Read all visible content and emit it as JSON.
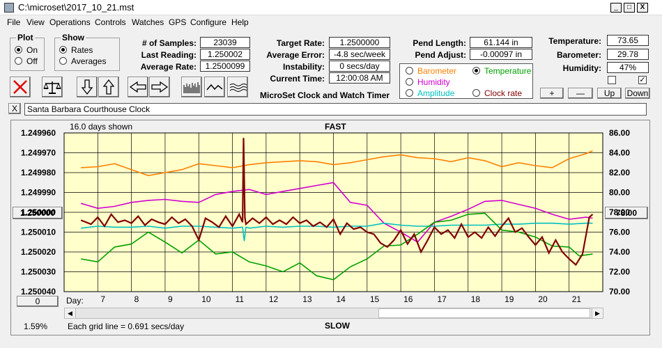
{
  "window": {
    "title": "C:\\microset\\2017_10_21.mst",
    "minimize": "_",
    "maximize": "□",
    "close": "X"
  },
  "menu": [
    "File",
    "View",
    "Operations",
    "Controls",
    "Watches",
    "GPS",
    "Configure",
    "Help"
  ],
  "plot_group": {
    "title": "Plot",
    "options": [
      "On",
      "Off"
    ],
    "selected": "On"
  },
  "show_group": {
    "title": "Show",
    "options": [
      "Rates",
      "Averages"
    ],
    "selected": "Rates"
  },
  "stats": {
    "samples_label": "# of Samples:",
    "samples": "23039",
    "last_reading_label": "Last Reading:",
    "last_reading": "1.250002",
    "avg_rate_label": "Average Rate:",
    "avg_rate": "1.2500099"
  },
  "rates": {
    "target_label": "Target Rate:",
    "target": "1.2500000",
    "avg_error_label": "Average Error:",
    "avg_error": "-4.8 sec/week",
    "instability_label": "Instability:",
    "instability": "0 secs/day",
    "current_time_label": "Current Time:",
    "current_time": "12:00:08 AM"
  },
  "pendulum": {
    "length_label": "Pend Length:",
    "length": "61.144 in",
    "adjust_label": "Pend Adjust:",
    "adjust": "-0.00097 in"
  },
  "env": {
    "temp_label": "Temperature:",
    "temp": "73.65",
    "baro_label": "Barometer:",
    "baro": "29.78",
    "humid_label": "Humidity:",
    "humid": "47%"
  },
  "overlay": {
    "options": [
      {
        "label": "Barometer",
        "color": "#ff8000",
        "selected": false
      },
      {
        "label": "Temperature",
        "color": "#00a000",
        "selected": true
      },
      {
        "label": "Humidity",
        "color": "#d000d0",
        "selected": false
      },
      {
        "label": "Clock rate",
        "color": "#800000",
        "selected": false
      },
      {
        "label": "Amplitude",
        "color": "#00c0c0",
        "selected": false
      }
    ]
  },
  "scale_buttons": {
    "plus": "+",
    "minus": "—",
    "up": "Up",
    "down": "Down"
  },
  "product_title": "MicroSet Clock and Watch Timer",
  "clock_name": "Santa Barbara Courthouse Clock",
  "clock_name_close": "X",
  "chart_data": {
    "type": "line",
    "top_label": "FAST",
    "bottom_label": "SLOW",
    "days_shown": "16.0 days shown",
    "grid_note": "Each grid line = 0.691 secs/day",
    "percent": "1.59%",
    "left_button": "1.250000",
    "right_button": "78.00",
    "left_bottom_button": "0",
    "day_label": "Day:",
    "x_ticks": [
      "7",
      "8",
      "9",
      "10",
      "11",
      "12",
      "13",
      "14",
      "15",
      "16",
      "17",
      "18",
      "19",
      "20",
      "21"
    ],
    "y_left_ticks": [
      "1.249960",
      "1.249970",
      "1.249980",
      "1.249990",
      "1.250000",
      "1.250010",
      "1.250020",
      "1.250030",
      "1.250040"
    ],
    "y_right_ticks": [
      "86.00",
      "84.00",
      "82.00",
      "80.00",
      "78.00",
      "76.00",
      "74.00",
      "72.00",
      "70.00"
    ],
    "series": [
      {
        "name": "Barometer",
        "color": "#ff8000",
        "x": [
          6.5,
          7,
          7.5,
          8,
          8.5,
          9,
          9.5,
          10,
          10.5,
          11,
          11.5,
          12,
          12.5,
          13,
          13.5,
          14,
          14.5,
          15,
          15.5,
          16,
          16.5,
          17,
          17.5,
          18,
          18.5,
          19,
          19.5,
          20,
          20.5,
          21,
          21.5,
          21.7
        ],
        "y": [
          82.5,
          82.6,
          82.9,
          82.3,
          81.7,
          82.0,
          82.3,
          82.9,
          82.7,
          82.5,
          82.8,
          83.0,
          83.1,
          83.2,
          83.1,
          82.8,
          83.0,
          83.3,
          83.6,
          83.8,
          83.5,
          83.4,
          83.1,
          83.5,
          83.2,
          82.6,
          83.0,
          82.7,
          82.5,
          83.4,
          83.9,
          84.2
        ]
      },
      {
        "name": "Humidity",
        "color": "#d000d0",
        "x": [
          6.5,
          7,
          7.5,
          8,
          8.5,
          9,
          9.5,
          10,
          10.5,
          11,
          11.5,
          12,
          12.5,
          13,
          13.5,
          14,
          14.5,
          15,
          15.5,
          16,
          16.5,
          17,
          17.5,
          18,
          18.5,
          19,
          19.5,
          20,
          20.5,
          21,
          21.5,
          21.7
        ],
        "y": [
          78.9,
          78.4,
          78.6,
          79.0,
          79.2,
          79.3,
          79.1,
          79.0,
          79.8,
          80.1,
          80.3,
          79.8,
          80.1,
          80.4,
          80.7,
          81.0,
          79.0,
          78.7,
          76.9,
          76.0,
          75.0,
          77.0,
          77.6,
          78.3,
          79.1,
          79.2,
          78.8,
          78.4,
          77.8,
          77.3,
          77.5,
          77.4
        ]
      },
      {
        "name": "Amplitude",
        "color": "#00c0c0",
        "x": [
          6.5,
          7,
          7.5,
          8,
          8.5,
          9,
          9.5,
          10,
          10.5,
          11,
          11.3,
          11.35,
          11.4,
          11.5,
          12,
          12.5,
          13,
          13.5,
          14,
          14.5,
          15,
          15.5,
          16,
          16.5,
          17,
          17.5,
          18,
          18.5,
          19,
          19.5,
          20,
          20.5,
          21,
          21.5,
          21.7
        ],
        "y": [
          76.4,
          76.6,
          76.5,
          76.5,
          76.6,
          76.4,
          76.6,
          76.6,
          76.5,
          76.4,
          76.5,
          75.1,
          76.5,
          76.4,
          76.6,
          76.5,
          76.6,
          76.6,
          76.5,
          76.6,
          76.6,
          76.9,
          76.7,
          76.6,
          76.6,
          76.7,
          76.7,
          76.7,
          76.8,
          76.8,
          76.9,
          76.9,
          76.8,
          76.9,
          76.9
        ]
      },
      {
        "name": "Temperature",
        "color": "#00a000",
        "x": [
          6.5,
          7,
          7.5,
          8,
          8.5,
          9,
          9.5,
          10,
          10.5,
          11,
          11.5,
          12,
          12.5,
          13,
          13.5,
          14,
          14.5,
          15,
          15.5,
          16,
          16.5,
          17,
          17.5,
          18,
          18.5,
          19,
          19.5,
          20,
          20.5,
          21,
          21.3,
          21.7
        ],
        "y": [
          73.3,
          73.0,
          74.5,
          74.8,
          76.0,
          75.0,
          73.9,
          75.2,
          73.8,
          74.0,
          73.0,
          72.6,
          72.0,
          72.9,
          71.6,
          71.2,
          72.5,
          73.3,
          74.6,
          74.7,
          75.8,
          77.0,
          77.2,
          77.8,
          77.9,
          76.2,
          76.0,
          75.5,
          74.6,
          74.5,
          73.6,
          73.8
        ]
      },
      {
        "name": "Clock rate",
        "color": "#800000",
        "x": [
          6.5,
          6.8,
          7,
          7.2,
          7.4,
          7.6,
          7.8,
          8,
          8.2,
          8.4,
          8.6,
          8.8,
          9,
          9.2,
          9.4,
          9.6,
          9.8,
          10,
          10.2,
          10.4,
          10.6,
          10.8,
          11,
          11.2,
          11.3,
          11.33,
          11.37,
          11.4,
          11.6,
          11.8,
          12,
          12.2,
          12.4,
          12.6,
          12.8,
          13,
          13.2,
          13.4,
          13.6,
          13.8,
          14,
          14.2,
          14.4,
          14.6,
          14.8,
          15,
          15.2,
          15.4,
          15.6,
          15.8,
          16,
          16.2,
          16.4,
          16.6,
          16.8,
          17,
          17.2,
          17.4,
          17.6,
          17.8,
          18,
          18.2,
          18.4,
          18.6,
          18.8,
          19,
          19.2,
          19.4,
          19.6,
          19.8,
          20,
          20.2,
          20.4,
          20.6,
          20.8,
          21,
          21.2,
          21.4,
          21.6,
          21.7
        ],
        "y": [
          77.2,
          76.8,
          77.5,
          76.6,
          77.8,
          77.0,
          77.2,
          76.9,
          77.6,
          76.7,
          77.3,
          77.0,
          76.8,
          77.5,
          76.9,
          77.3,
          76.6,
          75.2,
          77.4,
          77.0,
          76.5,
          77.6,
          76.6,
          77.8,
          77.0,
          85.5,
          77.5,
          76.8,
          77.4,
          76.9,
          77.5,
          76.8,
          77.2,
          76.8,
          77.5,
          76.9,
          77.2,
          76.6,
          77.0,
          76.5,
          77.3,
          75.8,
          76.9,
          76.3,
          76.5,
          76.0,
          75.8,
          74.9,
          74.5,
          75.2,
          76.2,
          74.8,
          75.8,
          74.0,
          75.2,
          76.5,
          75.8,
          76.2,
          75.4,
          76.8,
          75.5,
          76.0,
          75.4,
          76.5,
          75.6,
          76.6,
          77.4,
          76.0,
          76.4,
          75.5,
          74.7,
          75.5,
          73.9,
          75.2,
          74.0,
          73.3,
          72.7,
          73.8,
          77.5,
          77.8
        ]
      }
    ]
  }
}
